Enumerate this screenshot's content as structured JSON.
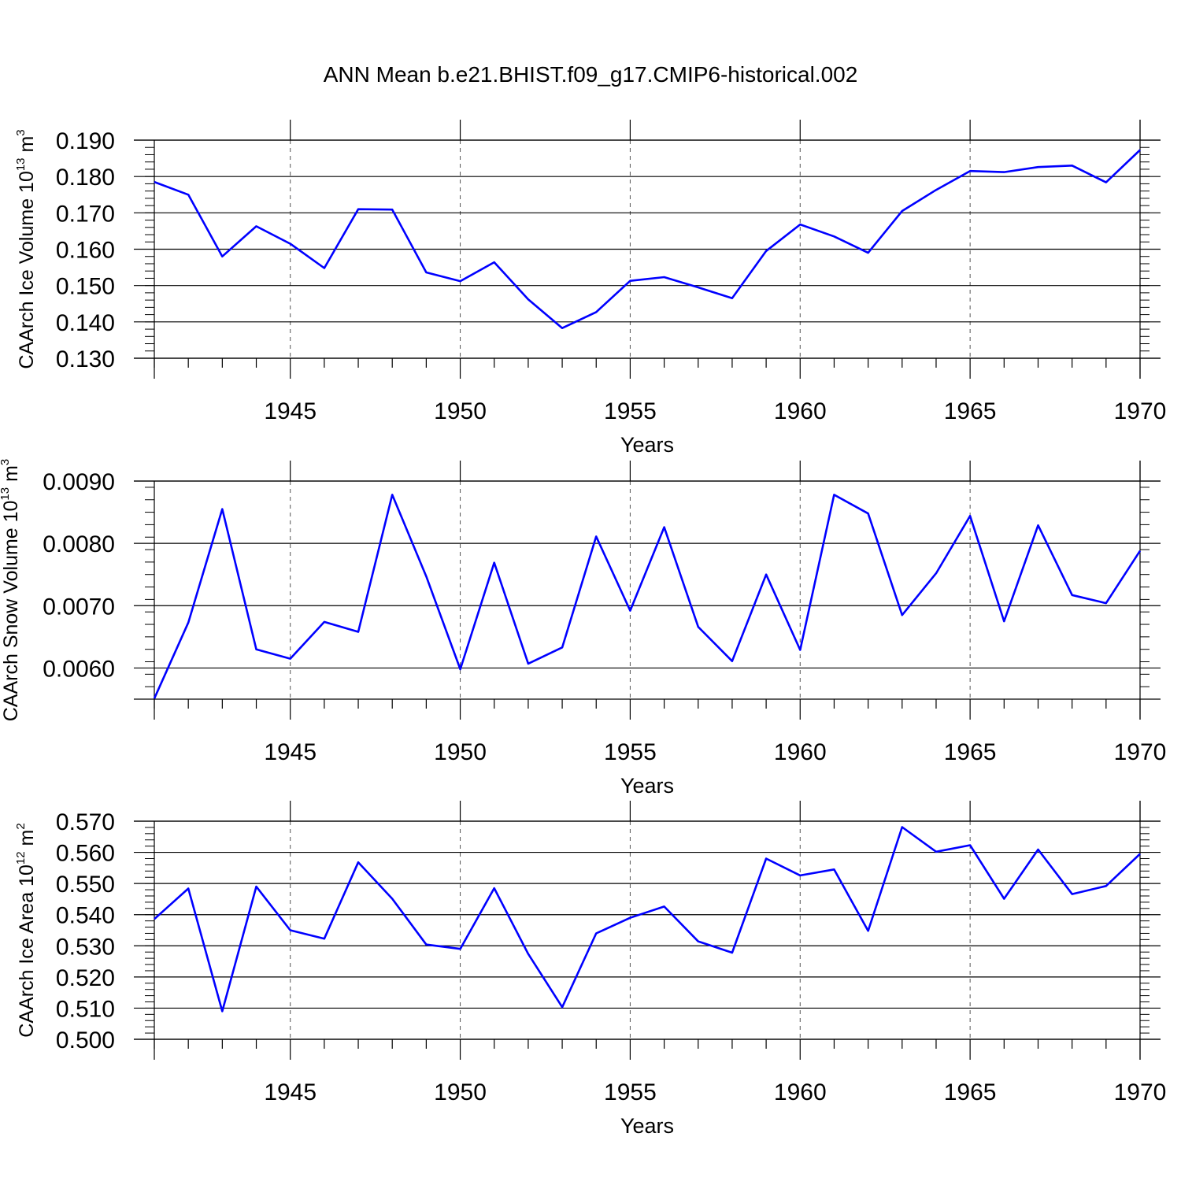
{
  "title": "ANN Mean b.e21.BHIST.f09_g17.CMIP6-historical.002",
  "line_color": "#0000ff",
  "chart_data": [
    {
      "type": "line",
      "ylabel": "CAArch Ice Volume 10",
      "ylabel_exp": "13",
      "ylabel_unit": "m",
      "ylabel_unit_exp": "3",
      "xlabel": "Years",
      "xlim": [
        1941,
        1970
      ],
      "ylim": [
        0.13,
        0.19
      ],
      "x_ticks": [
        "1945",
        "1950",
        "1955",
        "1960",
        "1965",
        "1970"
      ],
      "y_ticks": [
        "0.130",
        "0.140",
        "0.150",
        "0.160",
        "0.170",
        "0.180",
        "0.190"
      ],
      "x": [
        1941,
        1942,
        1943,
        1944,
        1945,
        1946,
        1947,
        1948,
        1949,
        1950,
        1951,
        1952,
        1953,
        1954,
        1955,
        1956,
        1957,
        1958,
        1959,
        1960,
        1961,
        1962,
        1963,
        1964,
        1965,
        1966,
        1967,
        1968,
        1969,
        1970
      ],
      "values": [
        0.1785,
        0.175,
        0.158,
        0.1663,
        0.1615,
        0.1548,
        0.171,
        0.1709,
        0.1536,
        0.1512,
        0.1564,
        0.1462,
        0.1383,
        0.1427,
        0.1513,
        0.1523,
        0.1495,
        0.1465,
        0.1595,
        0.1668,
        0.1635,
        0.159,
        0.1705,
        0.1763,
        0.1815,
        0.1812,
        0.1826,
        0.183,
        0.1784,
        0.1873
      ]
    },
    {
      "type": "line",
      "ylabel": "CAArch Snow Volume 10",
      "ylabel_exp": "13",
      "ylabel_unit": "m",
      "ylabel_unit_exp": "3",
      "xlabel": "Years",
      "xlim": [
        1941,
        1970
      ],
      "ylim": [
        0.0055,
        0.009
      ],
      "x_ticks": [
        "1945",
        "1950",
        "1955",
        "1960",
        "1965",
        "1970"
      ],
      "y_ticks": [
        "0.0060",
        "0.0070",
        "0.0080",
        "0.0090"
      ],
      "x": [
        1941,
        1942,
        1943,
        1944,
        1945,
        1946,
        1947,
        1948,
        1949,
        1950,
        1951,
        1952,
        1953,
        1954,
        1955,
        1956,
        1957,
        1958,
        1959,
        1960,
        1961,
        1962,
        1963,
        1964,
        1965,
        1966,
        1967,
        1968,
        1969,
        1970
      ],
      "values": [
        0.00551,
        0.00673,
        0.00855,
        0.0063,
        0.00615,
        0.00674,
        0.00658,
        0.00878,
        0.00747,
        0.00598,
        0.00769,
        0.00607,
        0.00633,
        0.00811,
        0.00692,
        0.00826,
        0.00666,
        0.00611,
        0.0075,
        0.00629,
        0.00878,
        0.00848,
        0.00685,
        0.00752,
        0.00844,
        0.00675,
        0.00829,
        0.00717,
        0.00704,
        0.00788
      ]
    },
    {
      "type": "line",
      "ylabel": "CAArch Ice Area 10",
      "ylabel_exp": "12",
      "ylabel_unit": "m",
      "ylabel_unit_exp": "2",
      "xlabel": "Years",
      "xlim": [
        1941,
        1970
      ],
      "ylim": [
        0.5,
        0.57
      ],
      "x_ticks": [
        "1945",
        "1950",
        "1955",
        "1960",
        "1965",
        "1970"
      ],
      "y_ticks": [
        "0.500",
        "0.510",
        "0.520",
        "0.530",
        "0.540",
        "0.550",
        "0.560",
        "0.570"
      ],
      "x": [
        1941,
        1942,
        1943,
        1944,
        1945,
        1946,
        1947,
        1948,
        1949,
        1950,
        1951,
        1952,
        1953,
        1954,
        1955,
        1956,
        1957,
        1958,
        1959,
        1960,
        1961,
        1962,
        1963,
        1964,
        1965,
        1966,
        1967,
        1968,
        1969,
        1970
      ],
      "values": [
        0.5386,
        0.5484,
        0.509,
        0.549,
        0.535,
        0.5323,
        0.5568,
        0.5451,
        0.5304,
        0.529,
        0.5485,
        0.5274,
        0.5103,
        0.534,
        0.539,
        0.5426,
        0.5314,
        0.5278,
        0.558,
        0.5526,
        0.5545,
        0.5348,
        0.5681,
        0.5602,
        0.5623,
        0.5451,
        0.5609,
        0.5466,
        0.5492,
        0.5595
      ]
    }
  ]
}
